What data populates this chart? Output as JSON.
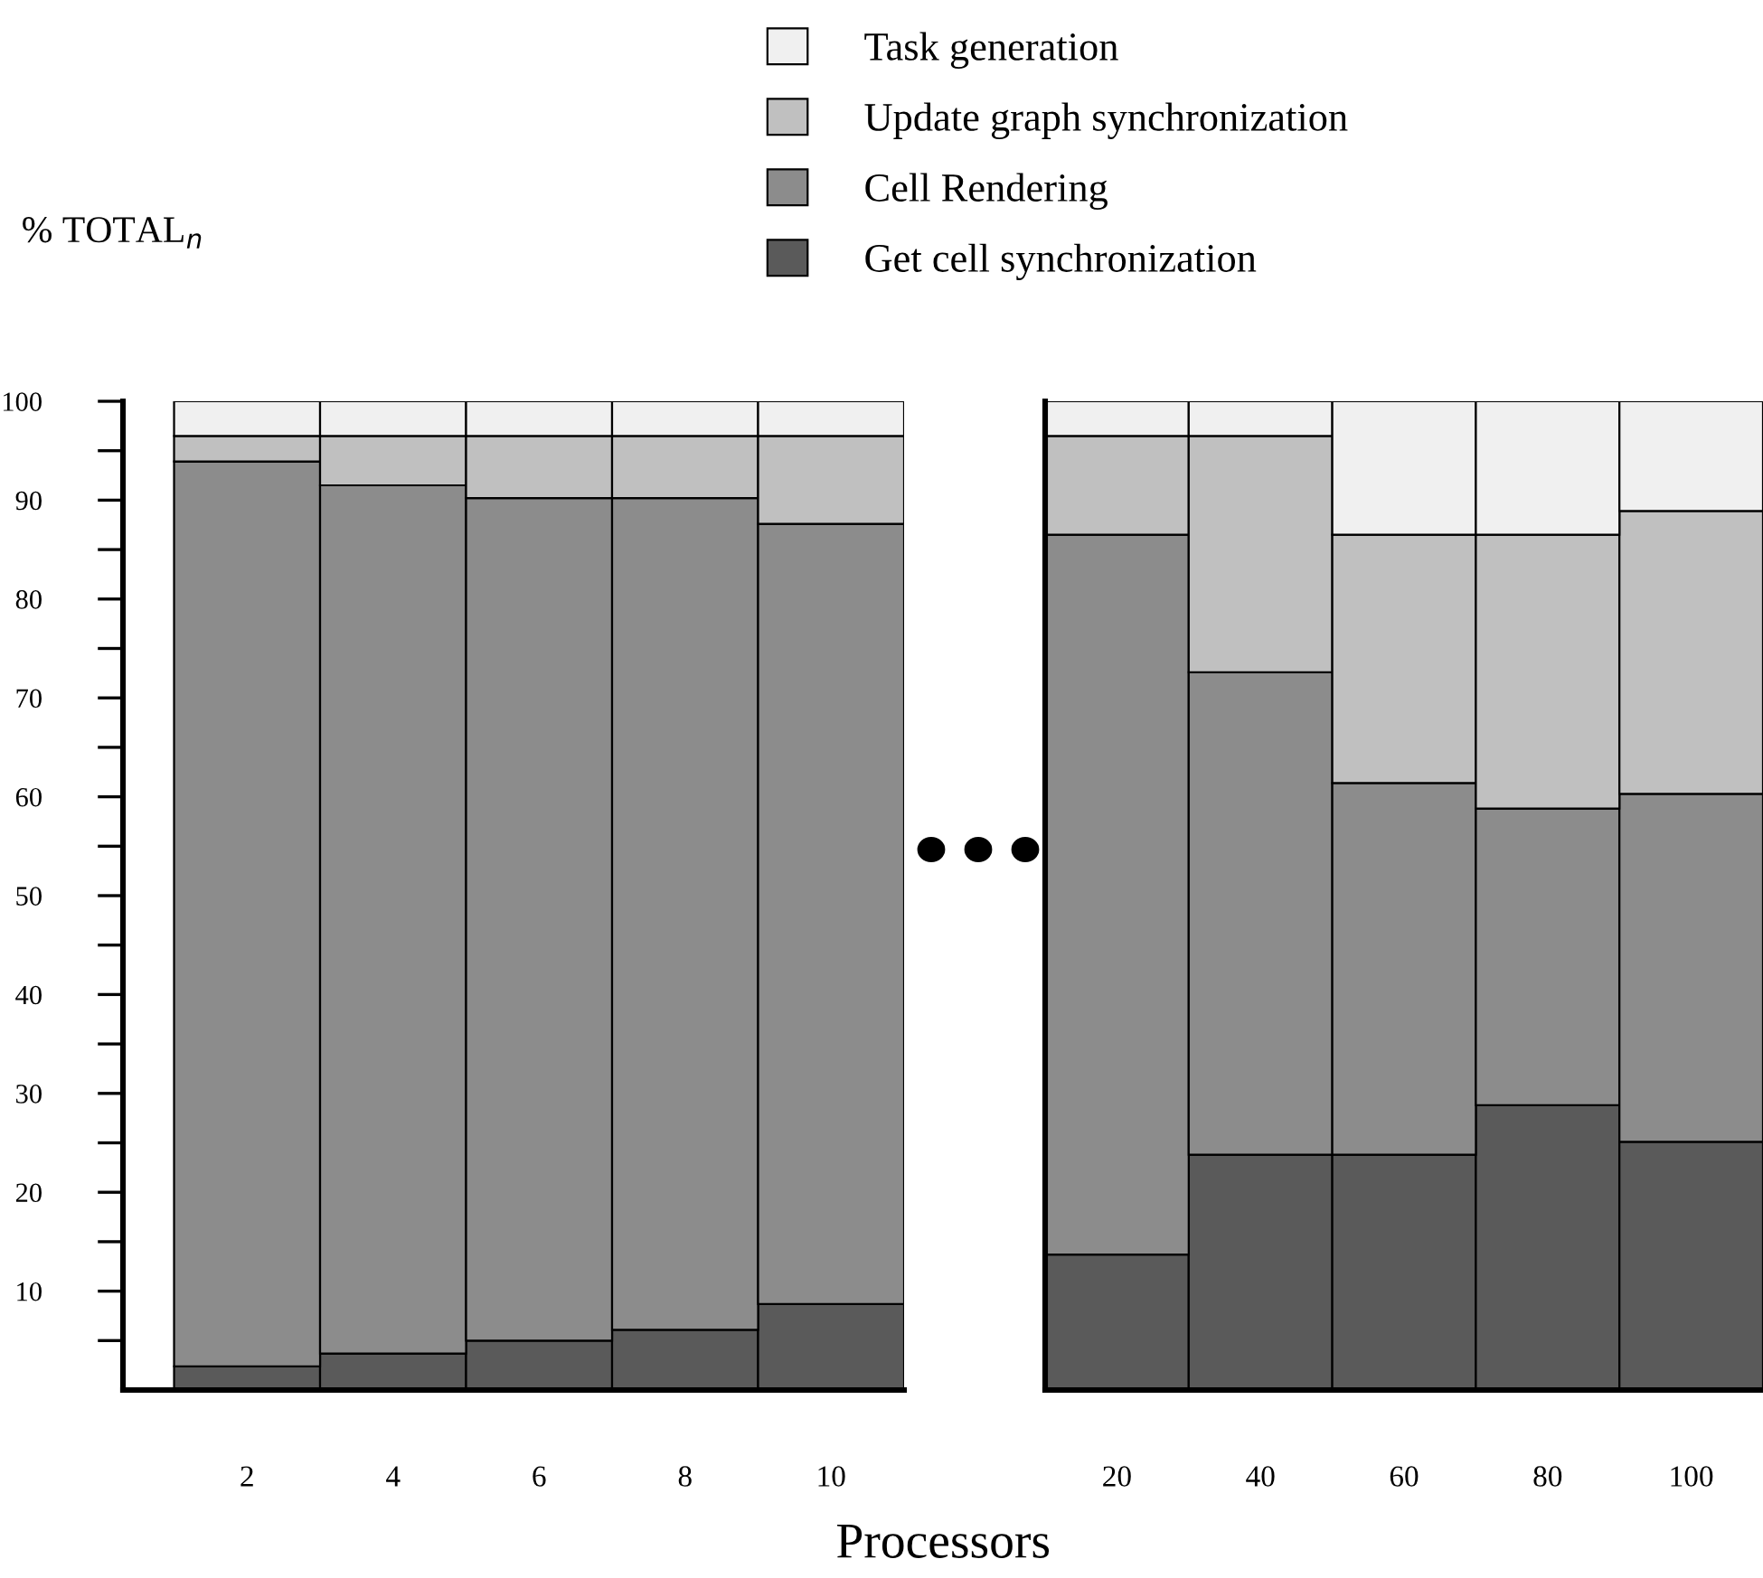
{
  "chart_data": [
    {
      "type": "bar",
      "stacked": true,
      "ylabel": "% TOTAL$_{n}$",
      "xlabel": "Processors",
      "legend": "top",
      "categories": [
        "2",
        "4",
        "6",
        "8",
        "10"
      ],
      "ylim": [
        0,
        100
      ],
      "yticks": [
        {
          "value": 5,
          "label": null
        },
        10,
        {
          "value": 15,
          "label": null
        },
        20,
        {
          "value": 25,
          "label": null
        },
        30,
        {
          "value": 35,
          "label": null
        },
        40,
        {
          "value": 45,
          "label": null
        },
        50,
        {
          "value": 55,
          "label": null
        },
        60,
        {
          "value": 65,
          "label": null
        },
        70,
        {
          "value": 75,
          "label": null
        },
        80,
        {
          "value": 85,
          "label": null
        },
        90,
        {
          "value": 95,
          "label": null
        },
        100
      ],
      "series": [
        {
          "name": "Get cell synchronization",
          "color": "#5a5a5a",
          "values": [
            2.4,
            3.7,
            5.0,
            6.1,
            8.7
          ]
        },
        {
          "name": "Cell Rendering",
          "color": "#8c8c8c",
          "values": [
            91.5,
            87.8,
            85.2,
            84.1,
            78.9
          ]
        },
        {
          "name": "Update graph synchronization",
          "color": "#c0c0c0",
          "values": [
            2.6,
            5.0,
            6.3,
            6.3,
            8.9
          ]
        },
        {
          "name": "Task generation",
          "color": "#f0f0f0",
          "values": [
            3.5,
            3.5,
            3.5,
            3.5,
            3.5
          ]
        }
      ]
    },
    {
      "type": "bar",
      "stacked": true,
      "tick_labels": "x",
      "categories": [
        "20",
        "40",
        "60",
        "80",
        "100"
      ],
      "ylim": [
        0,
        100
      ],
      "series": [
        {
          "color": "#5a5a5a",
          "values": [
            13.7,
            23.8,
            23.8,
            28.8,
            25.1
          ]
        },
        {
          "color": "#8c8c8c",
          "values": [
            72.8,
            48.8,
            37.6,
            30.0,
            35.2
          ]
        },
        {
          "color": "#c0c0c0",
          "values": [
            10.0,
            23.9,
            25.1,
            27.7,
            28.6
          ]
        },
        {
          "color": "#f0f0f0",
          "values": [
            3.5,
            3.5,
            13.5,
            13.5,
            11.1
          ]
        }
      ]
    }
  ]
}
